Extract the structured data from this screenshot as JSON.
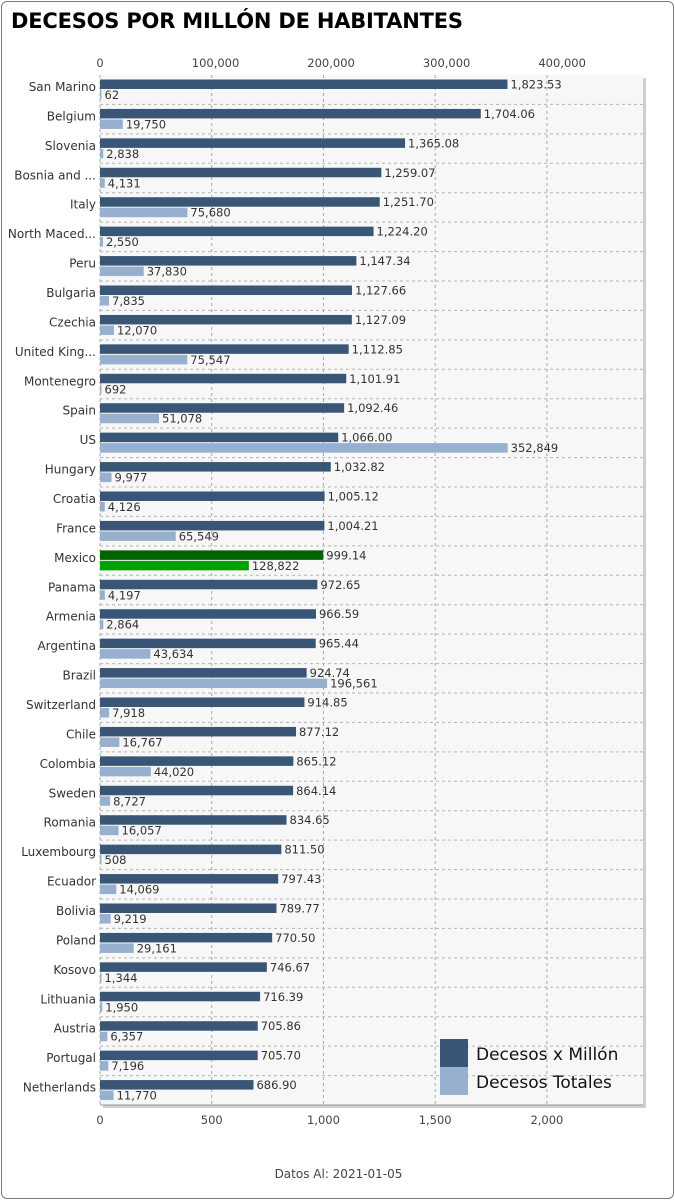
{
  "title": "DECESOS POR MILLÓN DE HABITANTES",
  "footer": "Datos Al: 2021-01-05",
  "colors": {
    "per_million": "#3a5677",
    "total": "#97b0cf",
    "highlight_per_million": "#006400",
    "highlight_total": "#00a000"
  },
  "chart_data": {
    "type": "bar",
    "orientation": "horizontal",
    "highlight": "Mexico",
    "categories": [
      "San Marino",
      "Belgium",
      "Slovenia",
      "Bosnia and ...",
      "Italy",
      "North Maced...",
      "Peru",
      "Bulgaria",
      "Czechia",
      "United King...",
      "Montenegro",
      "Spain",
      "US",
      "Hungary",
      "Croatia",
      "France",
      "Mexico",
      "Panama",
      "Armenia",
      "Argentina",
      "Brazil",
      "Switzerland",
      "Chile",
      "Colombia",
      "Sweden",
      "Romania",
      "Luxembourg",
      "Ecuador",
      "Bolivia",
      "Poland",
      "Kosovo",
      "Lithuania",
      "Austria",
      "Portugal",
      "Netherlands"
    ],
    "series": [
      {
        "name": "Decesos x Millón",
        "axis": "bottom",
        "labels": [
          "1,823.53",
          "1,704.06",
          "1,365.08",
          "1,259.07",
          "1,251.70",
          "1,224.20",
          "1,147.34",
          "1,127.66",
          "1,127.09",
          "1,112.85",
          "1,101.91",
          "1,092.46",
          "1,066.00",
          "1,032.82",
          "1,005.12",
          "1,004.21",
          "999.14",
          "972.65",
          "966.59",
          "965.44",
          "924.74",
          "914.85",
          "877.12",
          "865.12",
          "864.14",
          "834.65",
          "811.50",
          "797.43",
          "789.77",
          "770.50",
          "746.67",
          "716.39",
          "705.86",
          "705.70",
          "686.90"
        ],
        "values": [
          1823.53,
          1704.06,
          1365.08,
          1259.07,
          1251.7,
          1224.2,
          1147.34,
          1127.66,
          1127.09,
          1112.85,
          1101.91,
          1092.46,
          1066.0,
          1032.82,
          1005.12,
          1004.21,
          999.14,
          972.65,
          966.59,
          965.44,
          924.74,
          914.85,
          877.12,
          865.12,
          864.14,
          834.65,
          811.5,
          797.43,
          789.77,
          770.5,
          746.67,
          716.39,
          705.86,
          705.7,
          686.9
        ]
      },
      {
        "name": "Decesos Totales",
        "axis": "top",
        "labels": [
          "62",
          "19,750",
          "2,838",
          "4,131",
          "75,680",
          "2,550",
          "37,830",
          "7,835",
          "12,070",
          "75,547",
          "692",
          "51,078",
          "352,849",
          "9,977",
          "4,126",
          "65,549",
          "128,822",
          "4,197",
          "2,864",
          "43,634",
          "196,561",
          "7,918",
          "16,767",
          "44,020",
          "8,727",
          "16,057",
          "508",
          "14,069",
          "9,219",
          "29,161",
          "1,344",
          "1,950",
          "6,357",
          "7,196",
          "11,770"
        ],
        "values": [
          62,
          19750,
          2838,
          4131,
          75680,
          2550,
          37830,
          7835,
          12070,
          75547,
          692,
          51078,
          352849,
          9977,
          4126,
          65549,
          128822,
          4197,
          2864,
          43634,
          196561,
          7918,
          16767,
          44020,
          8727,
          16057,
          508,
          14069,
          9219,
          29161,
          1344,
          1950,
          6357,
          7196,
          11770
        ]
      }
    ],
    "bottom_axis": {
      "ticks": [
        0,
        500,
        1000,
        1500,
        2000
      ],
      "tick_labels": [
        "0",
        "500",
        "1,000",
        "1,500",
        "2,000"
      ],
      "lim": [
        0,
        2430
      ]
    },
    "top_axis": {
      "ticks": [
        0,
        100000,
        200000,
        300000,
        400000
      ],
      "tick_labels": [
        "0",
        "100,000",
        "200,000",
        "300,000",
        "400,000"
      ],
      "lim": [
        0,
        470000
      ]
    },
    "grid": true,
    "legend": {
      "position": "bottom-right",
      "entries": [
        "Decesos x Millón",
        "Decesos Totales"
      ]
    }
  }
}
